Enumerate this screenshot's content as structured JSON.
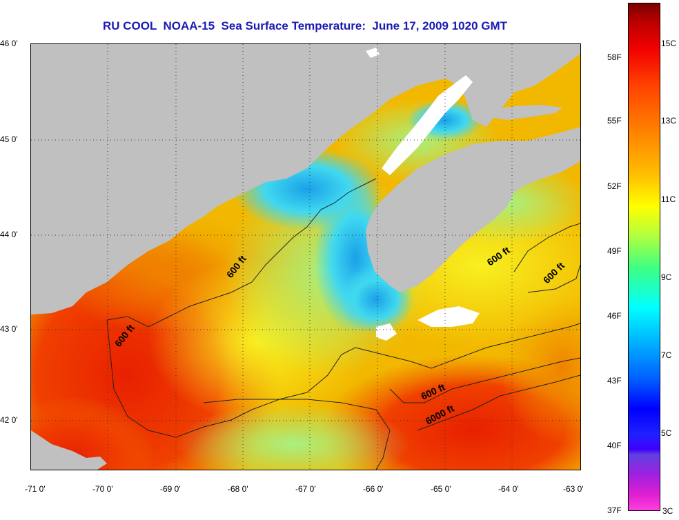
{
  "title": "RU COOL  NOAA-15  Sea Surface Temperature:  June 17, 2009 1020 GMT",
  "lat_labels": [
    "46 0'",
    "45 0'",
    "44 0'",
    "43 0'",
    "42 0'"
  ],
  "lon_labels": [
    "-71 0'",
    "-70 0'",
    "-69 0'",
    "-68 0'",
    "-67 0'",
    "-66 0'",
    "-65 0'",
    "-64 0'",
    "-63 0'"
  ],
  "contour_labels": [
    "600 ft",
    "600 ft",
    "600 ft",
    "600 ft",
    "600 ft",
    "6000 ft"
  ],
  "colorbar": {
    "fahrenheit": [
      "58F",
      "55F",
      "52F",
      "49F",
      "46F",
      "43F",
      "40F",
      "37F"
    ],
    "celsius": [
      "15C",
      "13C",
      "11C",
      "9C",
      "7C",
      "5C",
      "3C"
    ]
  },
  "colors": {
    "land": "#c0c0c0",
    "cloud": "#ffffff",
    "title": "#1a1ab4"
  }
}
